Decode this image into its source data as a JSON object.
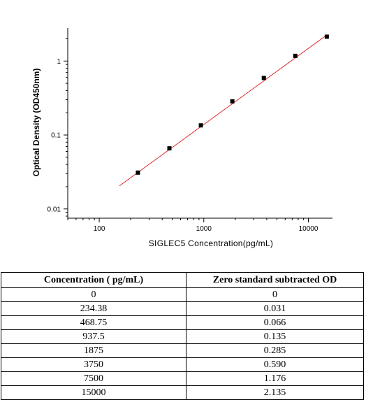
{
  "chart_data": {
    "type": "scatter",
    "xscale": "log",
    "yscale": "log",
    "xlabel": "SIGLEC5  Concentration(pg/mL)",
    "ylabel": "Optical Density (OD450nm)",
    "x_ticks": [
      "100",
      "1000",
      "10000"
    ],
    "y_ticks": [
      "0.01",
      "0.1",
      "1"
    ],
    "xlim": [
      50,
      17000
    ],
    "ylim": [
      0.0075,
      2.8
    ],
    "grid": false,
    "series": [
      {
        "x": [
          234.38,
          468.75,
          937.5,
          1875,
          3750,
          7500,
          15000
        ],
        "y": [
          0.031,
          0.066,
          0.135,
          0.285,
          0.59,
          1.176,
          2.135
        ]
      }
    ],
    "fit_line": {
      "x": [
        156,
        15000
      ],
      "y": [
        0.0205,
        2.25
      ]
    },
    "colors": {
      "points": "#000000",
      "fit_line": "#e03030"
    }
  },
  "table": {
    "headers": [
      "Concentration ( pg/mL)",
      "Zero standard subtracted OD"
    ],
    "rows": [
      [
        "0",
        "0"
      ],
      [
        "234.38",
        "0.031"
      ],
      [
        "468.75",
        "0.066"
      ],
      [
        "937.5",
        "0.135"
      ],
      [
        "1875",
        "0.285"
      ],
      [
        "3750",
        "0.590"
      ],
      [
        "7500",
        "1.176"
      ],
      [
        "15000",
        "2.135"
      ]
    ]
  }
}
